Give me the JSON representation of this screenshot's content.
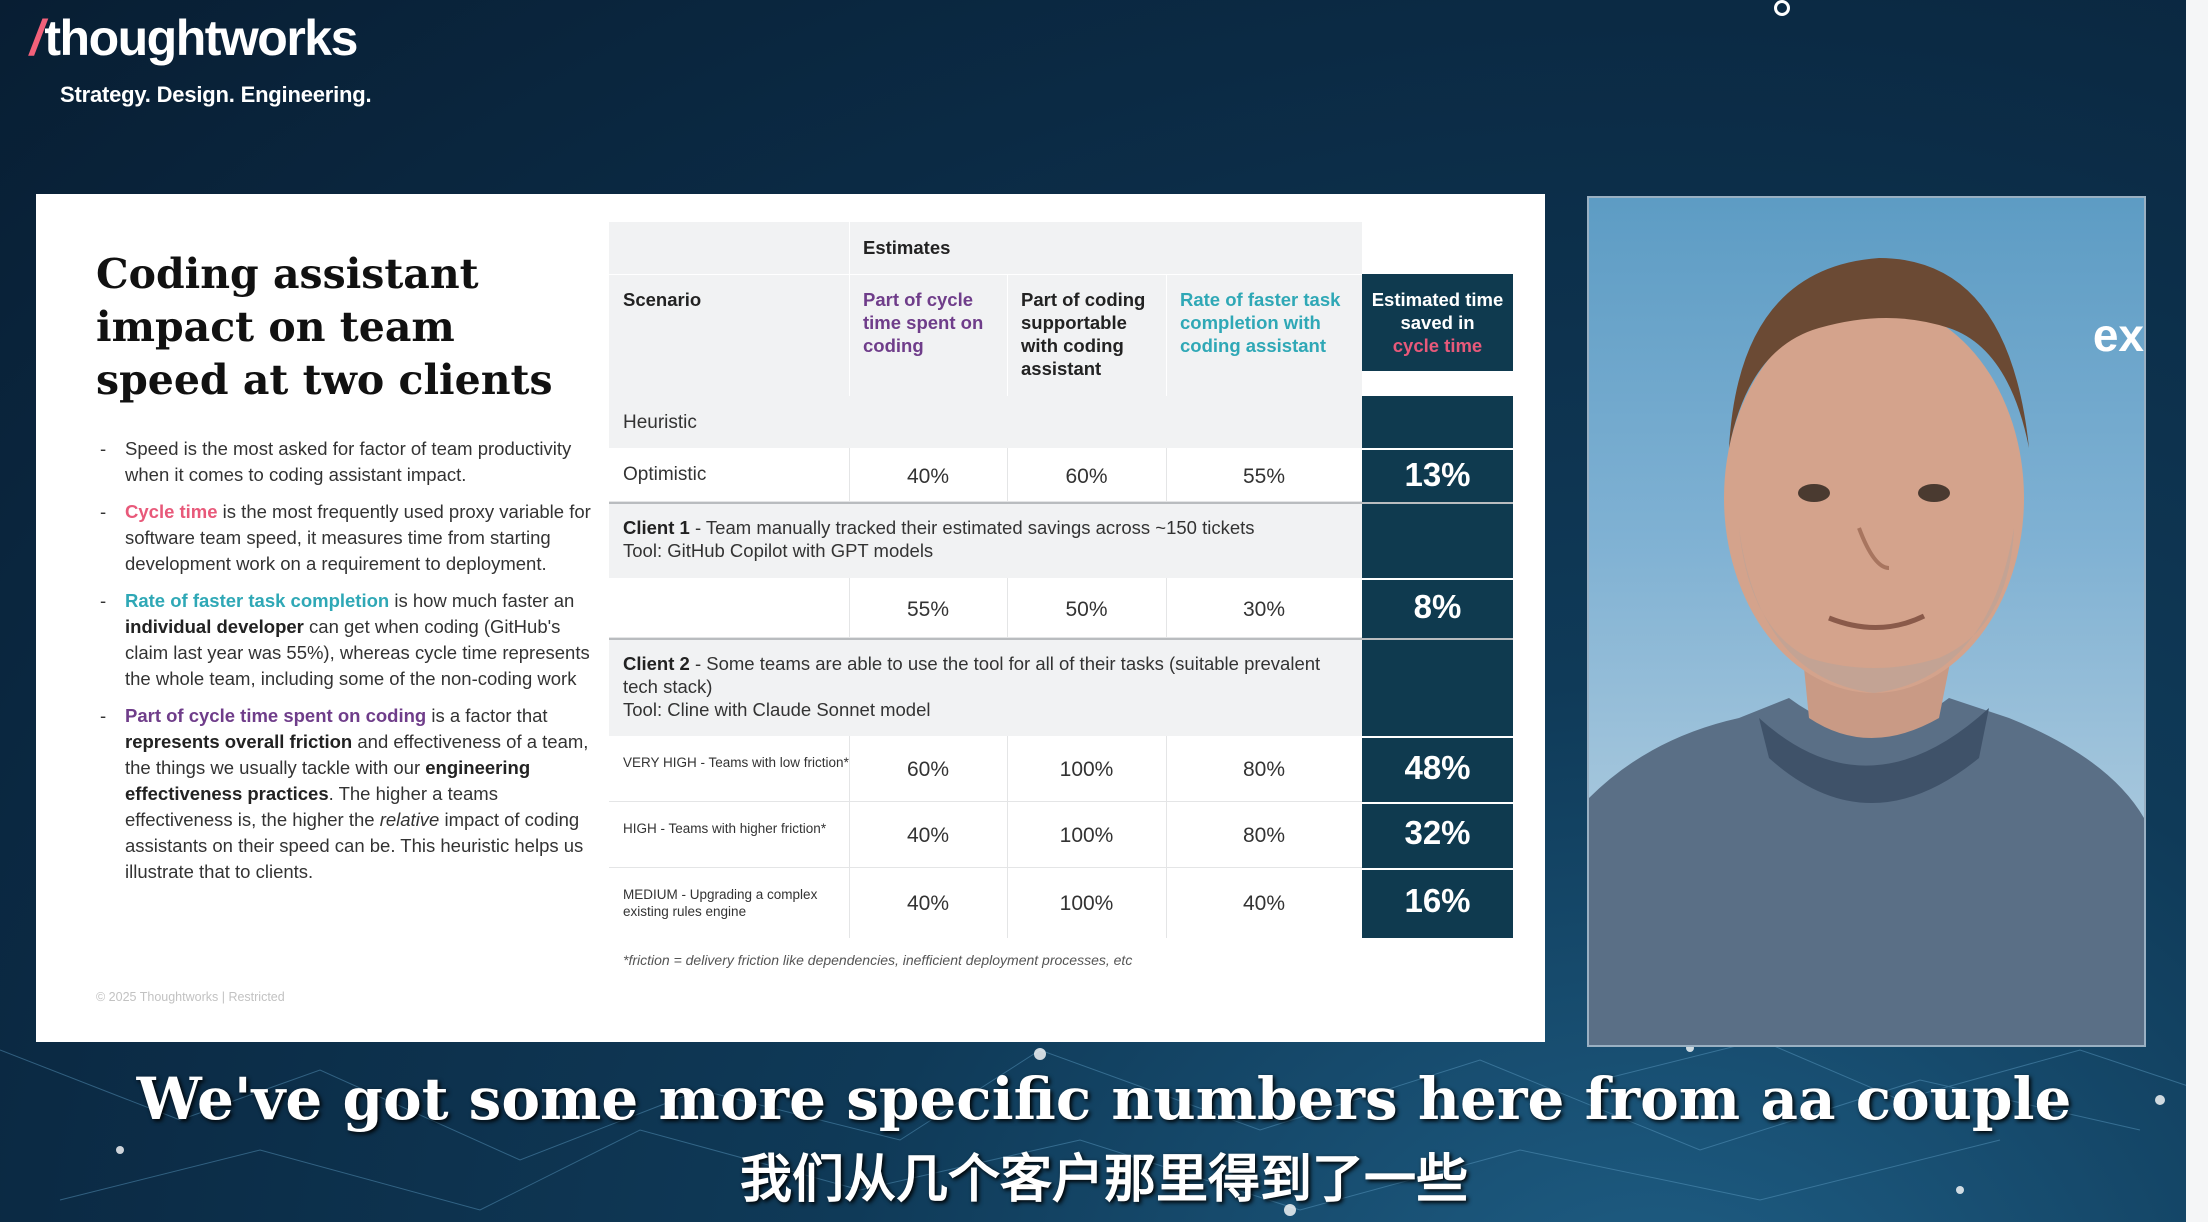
{
  "brand": {
    "logo_text": "thoughtworks",
    "tagline": "Strategy. Design. Engineering."
  },
  "slide": {
    "title": "Coding assistant impact on team speed at two clients",
    "bullets": [
      {
        "plain": "Speed is the most asked for factor of team productivity when it comes to coding assistant impact."
      },
      {
        "highlight": "Cycle time",
        "rest": " is the most frequently used proxy variable for software team speed, it measures time from starting development work on a requirement to deployment."
      },
      {
        "highlight": "Rate of faster task completion",
        "mid1": " is how much faster an ",
        "bold1": "individual developer",
        "rest": " can get when coding (GitHub's claim last year was 55%), whereas cycle time represents the whole team, including some of the non-coding work"
      },
      {
        "highlight": "Part of cycle time spent on coding",
        "mid1": " is a factor that ",
        "bold1": "represents overall friction",
        "mid2": " and effectiveness of a team, the things we usually tackle with our ",
        "bold2": "engineering effectiveness practices",
        "mid3": ". The higher a teams effectiveness is, the higher the ",
        "ital": "relative",
        "rest": " impact of coding assistants on their speed can be. This heuristic helps us illustrate that to clients."
      }
    ],
    "footer": "© 2025 Thoughtworks  |  Restricted",
    "table": {
      "estimates_label": "Estimates",
      "col_scenario": "Scenario",
      "col_part_cycle": "Part of cycle time spent on coding",
      "col_part_coding": "Part of coding supportable with coding assistant",
      "col_rate": "Rate of faster task completion with coding assistant",
      "col_est_a": "Estimated time saved in",
      "col_est_b": "cycle time",
      "heuristic_label": "Heuristic",
      "optimistic": {
        "label": "Optimistic",
        "v1": "40%",
        "v2": "60%",
        "v3": "55%",
        "total": "13%"
      },
      "client1": {
        "name": "Client 1",
        "desc": " - Team manually tracked their estimated savings across ~150 tickets",
        "tool": "Tool: GitHub Copilot with GPT models",
        "v1": "55%",
        "v2": "50%",
        "v3": "30%",
        "total": "8%"
      },
      "client2": {
        "name": "Client 2",
        "desc": " - Some teams are able to use the tool for all of their tasks (suitable prevalent tech stack)",
        "tool": "Tool: Cline with Claude Sonnet model"
      },
      "rows": [
        {
          "label": "VERY HIGH - Teams with low friction*",
          "v1": "60%",
          "v2": "100%",
          "v3": "80%",
          "total": "48%"
        },
        {
          "label": "HIGH - Teams with higher friction*",
          "v1": "40%",
          "v2": "100%",
          "v3": "80%",
          "total": "32%"
        },
        {
          "label": "MEDIUM - Upgrading a complex existing rules engine",
          "v1": "40%",
          "v2": "100%",
          "v3": "40%",
          "total": "16%"
        }
      ],
      "footnote": "*friction = delivery friction like dependencies, inefficient deployment processes, etc"
    }
  },
  "video": {
    "overlay_text": "ex"
  },
  "subtitles": {
    "en": "We've got some more specific numbers here from aa couple",
    "zh": "我们从几个客户那里得到了一些"
  },
  "colors": {
    "pink": "#e8597a",
    "teal": "#2fa8b6",
    "purple": "#6f3d8a",
    "dark": "#0f3a4f"
  }
}
